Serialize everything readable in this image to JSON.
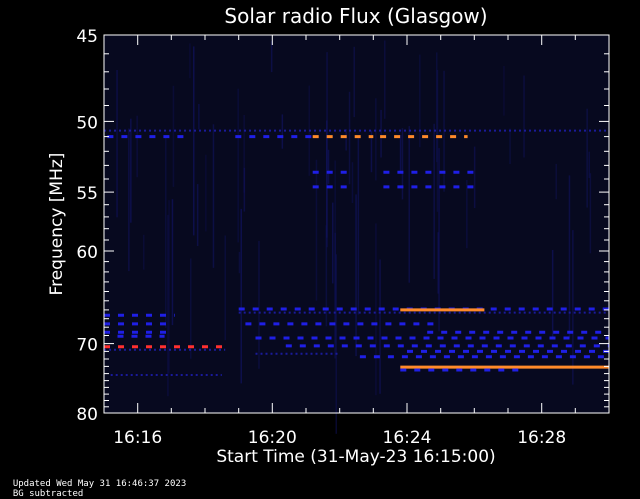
{
  "chart_data": {
    "type": "heatmap",
    "title": "Solar radio Flux (Glasgow)",
    "xlabel": "Start Time (31-May-23 16:15:00)",
    "ylabel": "Frequency [MHz]",
    "x_ticks": [
      "16:16",
      "16:20",
      "16:24",
      "16:28"
    ],
    "x_tick_minutes": [
      16,
      20,
      24,
      28
    ],
    "xlim_minutes": [
      15.0,
      30.0
    ],
    "y_scale": "reciprocal",
    "y_ticks": [
      45,
      50,
      55,
      60,
      70,
      80
    ],
    "ylim": [
      45,
      80
    ],
    "background_color": "#07091f",
    "features": [
      {
        "freq": 50.6,
        "start": 15.0,
        "end": 30.0,
        "intensity": "low",
        "dotted": true
      },
      {
        "freq": 51.0,
        "start": 15.1,
        "end": 17.5,
        "intensity": "medium",
        "dotted": true
      },
      {
        "freq": 51.0,
        "start": 18.9,
        "end": 21.3,
        "intensity": "medium",
        "dotted": true
      },
      {
        "freq": 51.0,
        "start": 21.2,
        "end": 23.0,
        "intensity": "high",
        "dotted": true
      },
      {
        "freq": 51.0,
        "start": 23.2,
        "end": 25.8,
        "intensity": "high",
        "dotted": true
      },
      {
        "freq": 53.5,
        "start": 21.2,
        "end": 22.4,
        "intensity": "medium",
        "dotted": true
      },
      {
        "freq": 53.5,
        "start": 23.3,
        "end": 26.0,
        "intensity": "medium",
        "dotted": true
      },
      {
        "freq": 54.6,
        "start": 21.2,
        "end": 22.4,
        "intensity": "medium",
        "dotted": true
      },
      {
        "freq": 54.6,
        "start": 23.3,
        "end": 26.0,
        "intensity": "medium",
        "dotted": true
      },
      {
        "freq": 66.6,
        "start": 15.0,
        "end": 17.1,
        "intensity": "medium",
        "dotted": true
      },
      {
        "freq": 67.6,
        "start": 15.0,
        "end": 17.0,
        "intensity": "medium",
        "dotted": true
      },
      {
        "freq": 68.6,
        "start": 15.0,
        "end": 17.0,
        "intensity": "medium",
        "dotted": true
      },
      {
        "freq": 69.1,
        "start": 15.4,
        "end": 16.8,
        "intensity": "medium",
        "dotted": true
      },
      {
        "freq": 70.4,
        "start": 15.0,
        "end": 18.6,
        "intensity": "very_high",
        "dotted": true
      },
      {
        "freq": 70.8,
        "start": 15.0,
        "end": 18.6,
        "intensity": "low",
        "dotted": true
      },
      {
        "freq": 74.2,
        "start": 15.2,
        "end": 18.5,
        "intensity": "low",
        "dotted": true
      },
      {
        "freq": 65.9,
        "start": 19.0,
        "end": 30.0,
        "intensity": "medium",
        "dotted": true
      },
      {
        "freq": 66.0,
        "start": 23.8,
        "end": 26.3,
        "intensity": "high",
        "dotted": false
      },
      {
        "freq": 66.3,
        "start": 19.0,
        "end": 30.0,
        "intensity": "low",
        "dotted": true
      },
      {
        "freq": 67.6,
        "start": 19.2,
        "end": 25.0,
        "intensity": "medium",
        "dotted": true
      },
      {
        "freq": 68.6,
        "start": 24.6,
        "end": 30.0,
        "intensity": "medium",
        "dotted": true
      },
      {
        "freq": 69.3,
        "start": 19.5,
        "end": 30.0,
        "intensity": "medium",
        "dotted": true
      },
      {
        "freq": 70.3,
        "start": 20.4,
        "end": 30.0,
        "intensity": "medium",
        "dotted": true
      },
      {
        "freq": 71.0,
        "start": 24.0,
        "end": 30.0,
        "intensity": "medium",
        "dotted": true
      },
      {
        "freq": 71.7,
        "start": 22.6,
        "end": 30.0,
        "intensity": "medium",
        "dotted": true
      },
      {
        "freq": 73.1,
        "start": 23.8,
        "end": 30.0,
        "intensity": "high",
        "dotted": false
      },
      {
        "freq": 73.5,
        "start": 23.8,
        "end": 27.5,
        "intensity": "medium",
        "dotted": true
      },
      {
        "freq": 71.3,
        "start": 19.5,
        "end": 22.0,
        "intensity": "low",
        "dotted": true
      }
    ],
    "intensity_colors": {
      "low": "#1a1a9a",
      "medium": "#1f1fe6",
      "high": "#ff8a2a",
      "very_high": "#ff3030"
    }
  },
  "footer": {
    "updated": "Updated Wed May 31 16:46:37 2023",
    "note": "BG subtracted"
  }
}
